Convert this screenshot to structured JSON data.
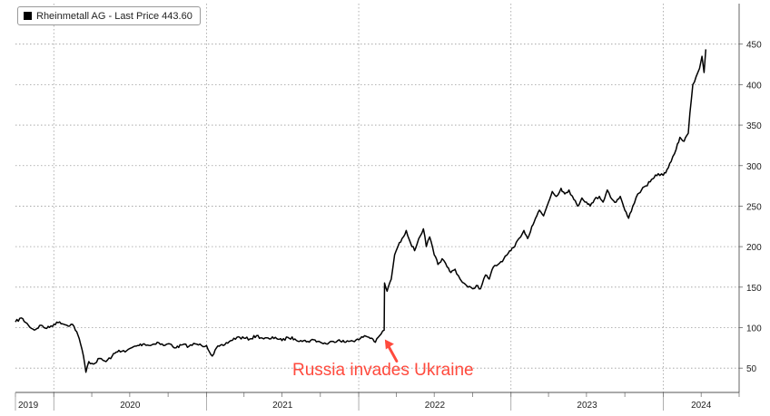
{
  "chart_data": {
    "type": "line",
    "title": "",
    "legend": {
      "label": "Rheinmetall AG - Last Price 443.60",
      "color": "#000000",
      "position": "top-left"
    },
    "xlabel": "",
    "ylabel": "",
    "x_tick_labels": [
      "2019",
      "2020",
      "2021",
      "2022",
      "2023",
      "2024"
    ],
    "y_ticks": [
      50,
      100,
      150,
      200,
      250,
      300,
      350,
      400,
      450
    ],
    "ylim": [
      20,
      500
    ],
    "xlim": [
      "2019-10-01",
      "2024-07-01"
    ],
    "y_axis_position": "right",
    "grid": true,
    "grid_style": "dotted",
    "line_color": "#000000",
    "annotation": {
      "text": "Russia invades Ukraine",
      "x": "2022-02-24",
      "color": "#ff4a3d"
    },
    "series": [
      {
        "name": "Rheinmetall AG",
        "points": [
          [
            "2019-10-01",
            107
          ],
          [
            "2019-10-15",
            112
          ],
          [
            "2019-11-01",
            103
          ],
          [
            "2019-11-15",
            97
          ],
          [
            "2019-12-01",
            103
          ],
          [
            "2019-12-15",
            99
          ],
          [
            "2020-01-01",
            104
          ],
          [
            "2020-01-15",
            107
          ],
          [
            "2020-02-01",
            103
          ],
          [
            "2020-02-15",
            104
          ],
          [
            "2020-02-25",
            95
          ],
          [
            "2020-03-05",
            80
          ],
          [
            "2020-03-12",
            65
          ],
          [
            "2020-03-18",
            45
          ],
          [
            "2020-03-25",
            58
          ],
          [
            "2020-04-05",
            55
          ],
          [
            "2020-04-20",
            62
          ],
          [
            "2020-05-05",
            58
          ],
          [
            "2020-05-20",
            65
          ],
          [
            "2020-06-05",
            72
          ],
          [
            "2020-06-20",
            70
          ],
          [
            "2020-07-05",
            75
          ],
          [
            "2020-07-20",
            78
          ],
          [
            "2020-08-05",
            80
          ],
          [
            "2020-08-20",
            78
          ],
          [
            "2020-09-05",
            82
          ],
          [
            "2020-09-20",
            78
          ],
          [
            "2020-10-05",
            80
          ],
          [
            "2020-10-20",
            75
          ],
          [
            "2020-11-05",
            79
          ],
          [
            "2020-11-20",
            77
          ],
          [
            "2020-12-05",
            80
          ],
          [
            "2020-12-20",
            78
          ],
          [
            "2021-01-01",
            78
          ],
          [
            "2021-01-15",
            65
          ],
          [
            "2021-01-25",
            75
          ],
          [
            "2021-02-10",
            78
          ],
          [
            "2021-02-25",
            83
          ],
          [
            "2021-03-15",
            88
          ],
          [
            "2021-04-01",
            87
          ],
          [
            "2021-04-15",
            86
          ],
          [
            "2021-05-01",
            90
          ],
          [
            "2021-05-15",
            87
          ],
          [
            "2021-06-01",
            86
          ],
          [
            "2021-06-15",
            88
          ],
          [
            "2021-07-01",
            84
          ],
          [
            "2021-07-15",
            88
          ],
          [
            "2021-08-01",
            86
          ],
          [
            "2021-08-15",
            84
          ],
          [
            "2021-09-01",
            83
          ],
          [
            "2021-09-15",
            85
          ],
          [
            "2021-10-01",
            82
          ],
          [
            "2021-10-15",
            80
          ],
          [
            "2021-11-01",
            83
          ],
          [
            "2021-11-15",
            85
          ],
          [
            "2021-12-01",
            82
          ],
          [
            "2021-12-15",
            84
          ],
          [
            "2022-01-01",
            85
          ],
          [
            "2022-01-15",
            90
          ],
          [
            "2022-02-01",
            87
          ],
          [
            "2022-02-10",
            82
          ],
          [
            "2022-02-20",
            90
          ],
          [
            "2022-03-03",
            97
          ],
          [
            "2022-03-04",
            155
          ],
          [
            "2022-03-10",
            145
          ],
          [
            "2022-03-20",
            160
          ],
          [
            "2022-03-28",
            190
          ],
          [
            "2022-04-05",
            200
          ],
          [
            "2022-04-15",
            210
          ],
          [
            "2022-04-25",
            220
          ],
          [
            "2022-05-05",
            205
          ],
          [
            "2022-05-15",
            195
          ],
          [
            "2022-05-25",
            210
          ],
          [
            "2022-06-05",
            222
          ],
          [
            "2022-06-12",
            200
          ],
          [
            "2022-06-20",
            212
          ],
          [
            "2022-07-01",
            190
          ],
          [
            "2022-07-10",
            178
          ],
          [
            "2022-07-20",
            185
          ],
          [
            "2022-08-01",
            175
          ],
          [
            "2022-08-10",
            168
          ],
          [
            "2022-08-20",
            172
          ],
          [
            "2022-09-01",
            160
          ],
          [
            "2022-09-10",
            155
          ],
          [
            "2022-09-20",
            150
          ],
          [
            "2022-10-01",
            148
          ],
          [
            "2022-10-10",
            152
          ],
          [
            "2022-10-20",
            148
          ],
          [
            "2022-11-01",
            165
          ],
          [
            "2022-11-10",
            160
          ],
          [
            "2022-11-20",
            175
          ],
          [
            "2022-12-01",
            178
          ],
          [
            "2022-12-15",
            185
          ],
          [
            "2023-01-01",
            195
          ],
          [
            "2023-01-10",
            200
          ],
          [
            "2023-01-20",
            210
          ],
          [
            "2023-02-01",
            220
          ],
          [
            "2023-02-10",
            210
          ],
          [
            "2023-02-20",
            225
          ],
          [
            "2023-03-01",
            235
          ],
          [
            "2023-03-10",
            245
          ],
          [
            "2023-03-20",
            238
          ],
          [
            "2023-04-01",
            255
          ],
          [
            "2023-04-10",
            268
          ],
          [
            "2023-04-20",
            262
          ],
          [
            "2023-05-01",
            272
          ],
          [
            "2023-05-10",
            265
          ],
          [
            "2023-05-20",
            270
          ],
          [
            "2023-06-01",
            258
          ],
          [
            "2023-06-10",
            250
          ],
          [
            "2023-06-20",
            260
          ],
          [
            "2023-07-01",
            255
          ],
          [
            "2023-07-10",
            250
          ],
          [
            "2023-07-20",
            258
          ],
          [
            "2023-08-01",
            262
          ],
          [
            "2023-08-10",
            255
          ],
          [
            "2023-08-20",
            270
          ],
          [
            "2023-09-01",
            258
          ],
          [
            "2023-09-10",
            255
          ],
          [
            "2023-09-20",
            262
          ],
          [
            "2023-10-01",
            245
          ],
          [
            "2023-10-10",
            235
          ],
          [
            "2023-10-20",
            250
          ],
          [
            "2023-11-01",
            265
          ],
          [
            "2023-11-10",
            270
          ],
          [
            "2023-11-20",
            275
          ],
          [
            "2023-12-01",
            280
          ],
          [
            "2023-12-10",
            285
          ],
          [
            "2023-12-20",
            290
          ],
          [
            "2024-01-01",
            288
          ],
          [
            "2024-01-10",
            295
          ],
          [
            "2024-01-20",
            305
          ],
          [
            "2024-02-01",
            320
          ],
          [
            "2024-02-10",
            335
          ],
          [
            "2024-02-20",
            330
          ],
          [
            "2024-03-01",
            340
          ],
          [
            "2024-03-05",
            365
          ],
          [
            "2024-03-12",
            400
          ],
          [
            "2024-03-20",
            410
          ],
          [
            "2024-03-28",
            420
          ],
          [
            "2024-04-03",
            435
          ],
          [
            "2024-04-08",
            415
          ],
          [
            "2024-04-12",
            443.6
          ]
        ]
      }
    ]
  }
}
